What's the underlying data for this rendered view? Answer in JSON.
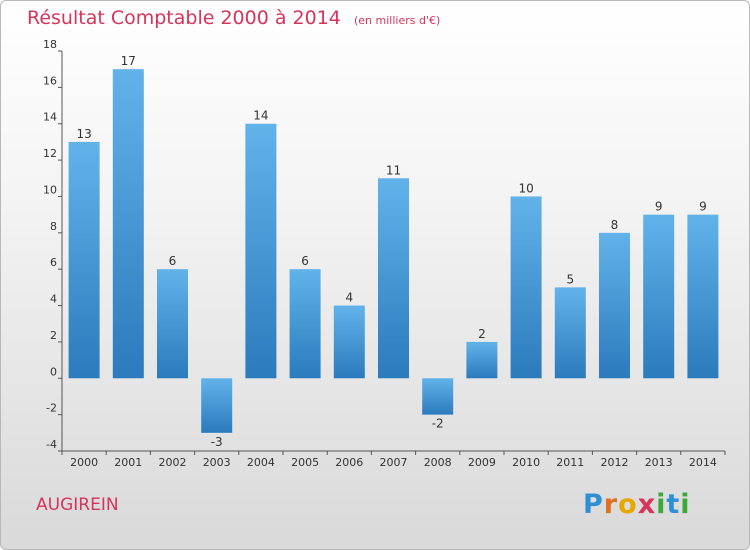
{
  "header": {
    "title": "Résultat Comptable 2000 à 2014",
    "subtitle": "(en milliers d'€)"
  },
  "footer": {
    "place": "AUGIREIN",
    "logo_letters": [
      {
        "ch": "P",
        "color": "#2f8fd6"
      },
      {
        "ch": "r",
        "color": "#e07020"
      },
      {
        "ch": "o",
        "color": "#e6a800"
      },
      {
        "ch": "x",
        "color": "#d7345a"
      },
      {
        "ch": "i",
        "color": "#3aa93a"
      },
      {
        "ch": "t",
        "color": "#2f8fd6"
      },
      {
        "ch": "i",
        "color": "#3aa93a"
      }
    ]
  },
  "colors": {
    "title": "#d7345a",
    "bar_light": "#62b2ea",
    "bar_dark": "#2b7bbd",
    "axis": "#555555"
  },
  "chart_data": {
    "type": "bar",
    "title": "Résultat Comptable 2000 à 2014",
    "subtitle": "(en milliers d'€)",
    "categories": [
      "2000",
      "2001",
      "2002",
      "2003",
      "2004",
      "2005",
      "2006",
      "2007",
      "2008",
      "2009",
      "2010",
      "2011",
      "2012",
      "2013",
      "2014"
    ],
    "values": [
      13,
      17,
      6,
      -3,
      14,
      6,
      4,
      11,
      -2,
      2,
      10,
      5,
      8,
      9,
      9
    ],
    "ylim": [
      -4,
      18
    ],
    "yticks": [
      -4,
      -2,
      0,
      2,
      4,
      6,
      8,
      10,
      12,
      14,
      16,
      18
    ],
    "grid": false,
    "legend": "none"
  }
}
